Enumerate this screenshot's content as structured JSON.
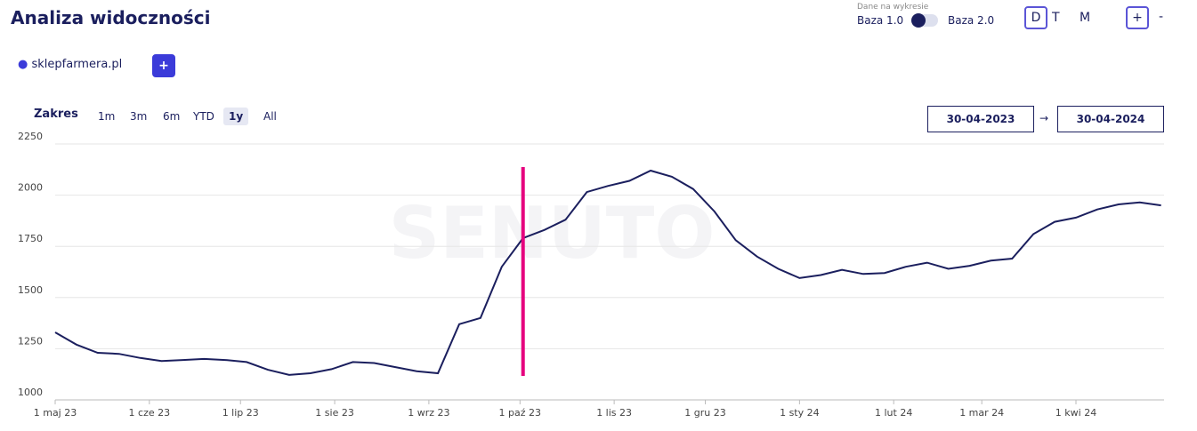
{
  "header": {
    "title": "Analiza widoczności",
    "data_label": "Dane na wykresie",
    "base_left": "Baza 1.0",
    "base_right": "Baza 2.0",
    "granularity": [
      "D",
      "T",
      "M"
    ],
    "active_granularity": "D",
    "zoom_in": "+",
    "zoom_out": "-"
  },
  "add_domain": "+",
  "range": {
    "label": "Zakres",
    "options": [
      "1m",
      "3m",
      "6m",
      "YTD",
      "1y",
      "All"
    ],
    "active": "1y",
    "date_from": "30-04-2023",
    "arrow": "→",
    "date_to": "30-04-2024"
  },
  "chart_data": {
    "type": "line",
    "watermark": "SENUTO",
    "x": [
      "2023-05-01",
      "2023-05-08",
      "2023-05-15",
      "2023-05-22",
      "2023-05-29",
      "2023-06-05",
      "2023-06-12",
      "2023-06-19",
      "2023-06-26",
      "2023-07-03",
      "2023-07-10",
      "2023-07-17",
      "2023-07-24",
      "2023-07-31",
      "2023-08-07",
      "2023-08-14",
      "2023-08-21",
      "2023-08-28",
      "2023-09-04",
      "2023-09-11",
      "2023-09-18",
      "2023-09-25",
      "2023-10-02",
      "2023-10-09",
      "2023-10-16",
      "2023-10-23",
      "2023-10-30",
      "2023-11-06",
      "2023-11-13",
      "2023-11-20",
      "2023-11-27",
      "2023-12-04",
      "2023-12-11",
      "2023-12-18",
      "2023-12-25",
      "2024-01-01",
      "2024-01-08",
      "2024-01-15",
      "2024-01-22",
      "2024-01-29",
      "2024-02-05",
      "2024-02-12",
      "2024-02-19",
      "2024-02-26",
      "2024-03-04",
      "2024-03-11",
      "2024-03-18",
      "2024-03-25",
      "2024-04-01",
      "2024-04-08",
      "2024-04-15",
      "2024-04-22",
      "2024-04-29"
    ],
    "series": [
      {
        "name": "sklepfarmera.pl",
        "color": "#1b1f5e",
        "values": [
          1330,
          1270,
          1230,
          1225,
          1205,
          1190,
          1195,
          1200,
          1195,
          1185,
          1147,
          1122,
          1130,
          1150,
          1185,
          1180,
          1160,
          1140,
          1130,
          1370,
          1400,
          1650,
          1790,
          1830,
          1880,
          2015,
          2045,
          2070,
          2120,
          2090,
          2030,
          1920,
          1780,
          1700,
          1640,
          1595,
          1610,
          1635,
          1615,
          1620,
          1650,
          1670,
          1640,
          1655,
          1680,
          1690,
          1810,
          1870,
          1890,
          1930,
          1955,
          1965,
          1950
        ]
      }
    ],
    "markers": [
      {
        "x": "2023-10-02",
        "color": "#e6007e"
      }
    ],
    "xlim": [
      "2023-05-01",
      "2024-04-30"
    ],
    "xticks": [
      {
        "value": "2023-05-01",
        "label": "1 maj 23"
      },
      {
        "value": "2023-06-01",
        "label": "1 cze 23"
      },
      {
        "value": "2023-07-01",
        "label": "1 lip 23"
      },
      {
        "value": "2023-08-01",
        "label": "1 sie 23"
      },
      {
        "value": "2023-09-01",
        "label": "1 wrz 23"
      },
      {
        "value": "2023-10-01",
        "label": "1 paź 23"
      },
      {
        "value": "2023-11-01",
        "label": "1 lis 23"
      },
      {
        "value": "2023-12-01",
        "label": "1 gru 23"
      },
      {
        "value": "2024-01-01",
        "label": "1 sty 24"
      },
      {
        "value": "2024-02-01",
        "label": "1 lut 24"
      },
      {
        "value": "2024-03-01",
        "label": "1 mar 24"
      },
      {
        "value": "2024-04-01",
        "label": "1 kwi 24"
      }
    ],
    "ylim": [
      1000,
      2250
    ],
    "yticks": [
      1000,
      1250,
      1500,
      1750,
      2000,
      2250
    ],
    "grid": true
  }
}
